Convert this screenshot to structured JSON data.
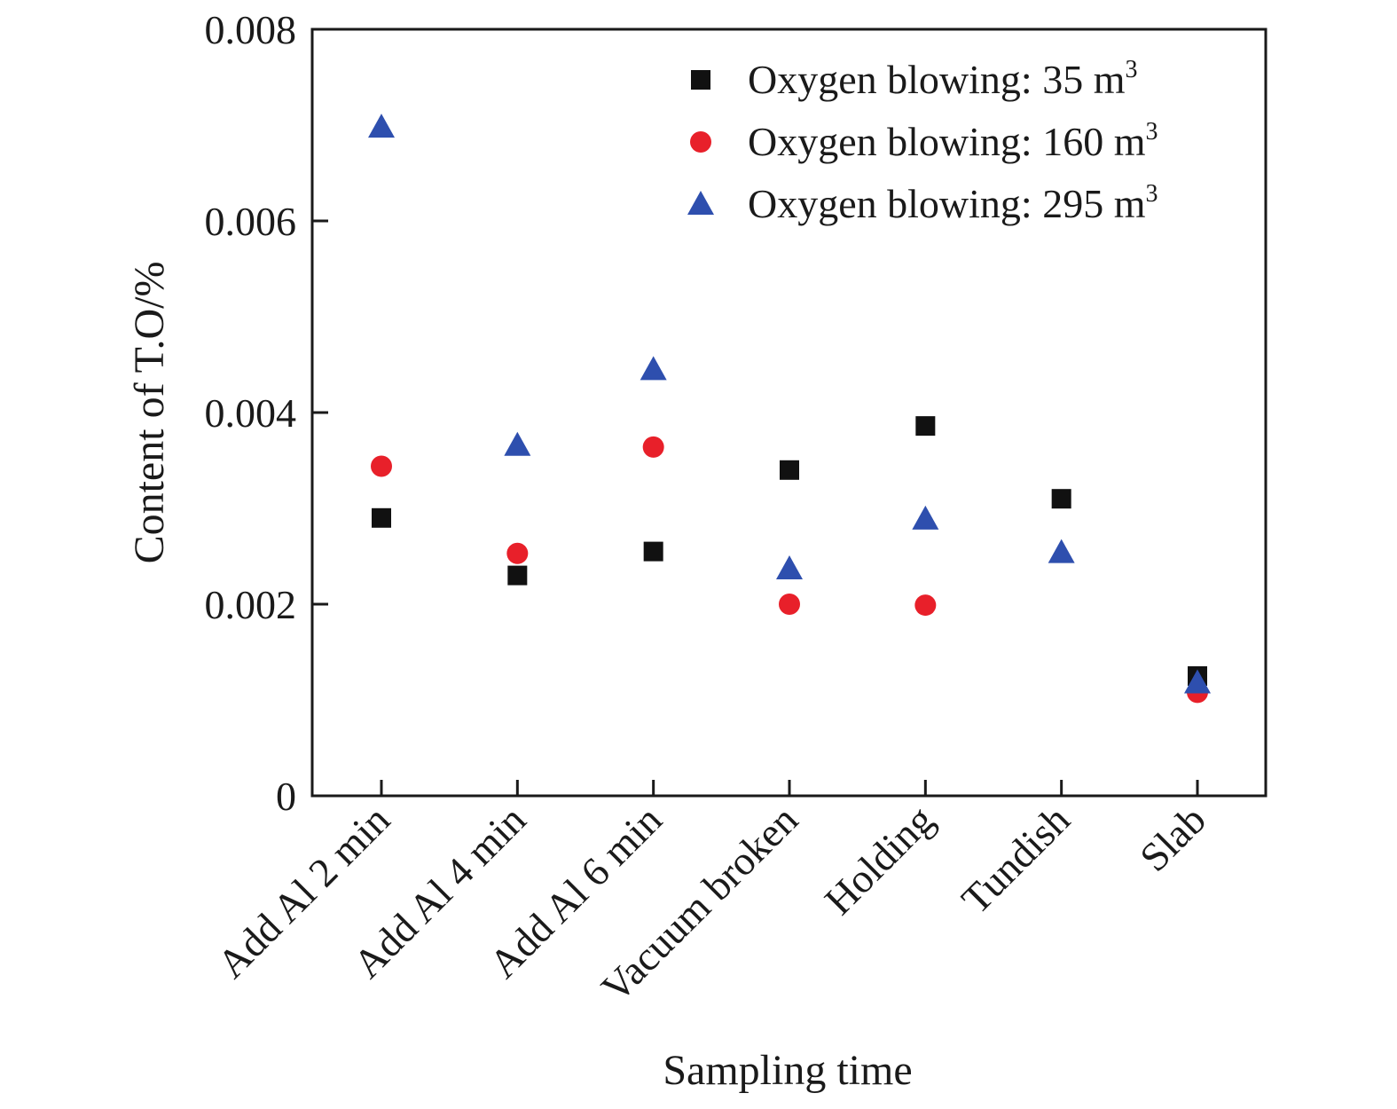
{
  "chart_data": {
    "type": "scatter",
    "title": "",
    "xlabel": "Sampling time",
    "ylabel": "Content of T.O/%",
    "categories": [
      "Add Al 2 min",
      "Add Al 4 min",
      "Add Al 6 min",
      "Vacuum broken",
      "Holding",
      "Tundish",
      "Slab"
    ],
    "ylim": [
      0,
      0.008
    ],
    "yticks": [
      0,
      0.002,
      0.004,
      0.006,
      0.008
    ],
    "ytick_labels": [
      "0",
      "0.002",
      "0.004",
      "0.006",
      "0.008"
    ],
    "legend_position": "top-right",
    "grid": false,
    "series": [
      {
        "name": "Oxygen blowing: 35 m",
        "name_sup": "3",
        "marker": "square",
        "color": "#111111",
        "values": [
          0.0029,
          0.0023,
          0.00255,
          0.0034,
          0.00386,
          0.0031,
          0.00125
        ]
      },
      {
        "name": "Oxygen blowing: 160 m",
        "name_sup": "3",
        "marker": "circle",
        "color": "#e8202a",
        "values": [
          0.00344,
          0.00253,
          0.00364,
          0.002,
          0.00199,
          null,
          0.00108
        ]
      },
      {
        "name": "Oxygen blowing: 295 m",
        "name_sup": "3",
        "marker": "triangle",
        "color": "#2e4fae",
        "values": [
          0.00698,
          0.00366,
          0.00445,
          0.00237,
          0.00289,
          0.00254,
          0.00118
        ]
      }
    ]
  }
}
